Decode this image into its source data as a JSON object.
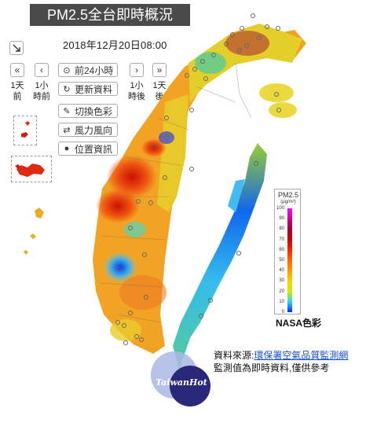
{
  "header": {
    "title": "PM2.5全台即時概況",
    "timestamp": "2018年12月20日08:00"
  },
  "controls": {
    "collapse_icon": "arrow-down-right-icon",
    "steps": [
      {
        "icon": "«",
        "label_top": "1天",
        "label_bottom": "前",
        "name": "back-1-day"
      },
      {
        "icon": "‹",
        "label_top": "1小",
        "label_bottom": "時前",
        "name": "back-1-hour"
      },
      {
        "icon": "›",
        "label_top": "1小",
        "label_bottom": "時後",
        "name": "forward-1-hour"
      },
      {
        "icon": "»",
        "label_top": "1天",
        "label_bottom": "後",
        "name": "forward-1-day"
      }
    ],
    "tools": [
      {
        "icon": "⏵",
        "label": "前24小時",
        "name": "past-24-hours-button"
      },
      {
        "icon": "↻",
        "label": "更新資料",
        "name": "refresh-data-button"
      },
      {
        "icon": "✎",
        "label": "切換色彩",
        "name": "switch-color-button"
      },
      {
        "icon": "⇄",
        "label": "風力風向",
        "name": "wind-button"
      },
      {
        "icon": "⚲",
        "label": "位置資訊",
        "name": "location-button"
      }
    ]
  },
  "legend": {
    "title": "PM2.5",
    "unit": "(μg/m³)",
    "ticks": [
      "100",
      "90",
      "80",
      "70",
      "60",
      "50",
      "40",
      "30",
      "20",
      "10",
      "0"
    ],
    "colors": [
      "#ff00ff",
      "#cc0099",
      "#990033",
      "#cc0000",
      "#ff2200",
      "#ff6600",
      "#ff9900",
      "#ffcc00",
      "#ccee00",
      "#33ccff",
      "#0033ff"
    ],
    "scheme_label": "NASA色彩"
  },
  "footer": {
    "source_prefix": "資料來源:",
    "source_link": "環保署空氣品質監測網",
    "disclaimer": "監測值為即時資料,僅供參考"
  },
  "watermark": {
    "text": "TaiwanHot"
  }
}
